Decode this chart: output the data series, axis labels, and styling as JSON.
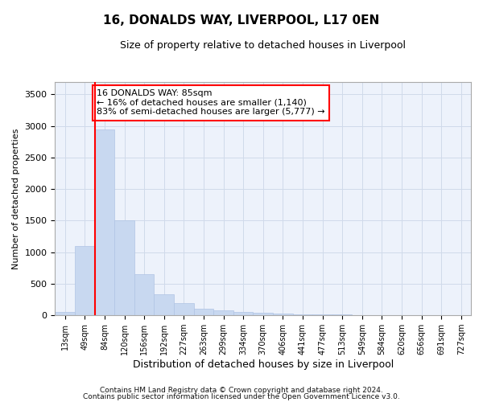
{
  "title1": "16, DONALDS WAY, LIVERPOOL, L17 0EN",
  "title2": "Size of property relative to detached houses in Liverpool",
  "xlabel": "Distribution of detached houses by size in Liverpool",
  "ylabel": "Number of detached properties",
  "bar_color": "#c8d8f0",
  "bar_edgecolor": "#b0c4e4",
  "grid_color": "#d0daea",
  "background_color": "#edf2fb",
  "categories": [
    "13sqm",
    "49sqm",
    "84sqm",
    "120sqm",
    "156sqm",
    "192sqm",
    "227sqm",
    "263sqm",
    "299sqm",
    "334sqm",
    "370sqm",
    "406sqm",
    "441sqm",
    "477sqm",
    "513sqm",
    "549sqm",
    "584sqm",
    "620sqm",
    "656sqm",
    "691sqm",
    "727sqm"
  ],
  "values": [
    50,
    1100,
    2950,
    1500,
    650,
    330,
    200,
    100,
    75,
    50,
    40,
    30,
    20,
    15,
    10,
    5,
    3,
    2,
    1,
    1,
    1
  ],
  "ylim": [
    0,
    3700
  ],
  "yticks": [
    0,
    500,
    1000,
    1500,
    2000,
    2500,
    3000,
    3500
  ],
  "red_line_x": 1.5,
  "annotation_text": "16 DONALDS WAY: 85sqm\n← 16% of detached houses are smaller (1,140)\n83% of semi-detached houses are larger (5,777) →",
  "footer1": "Contains HM Land Registry data © Crown copyright and database right 2024.",
  "footer2": "Contains public sector information licensed under the Open Government Licence v3.0."
}
